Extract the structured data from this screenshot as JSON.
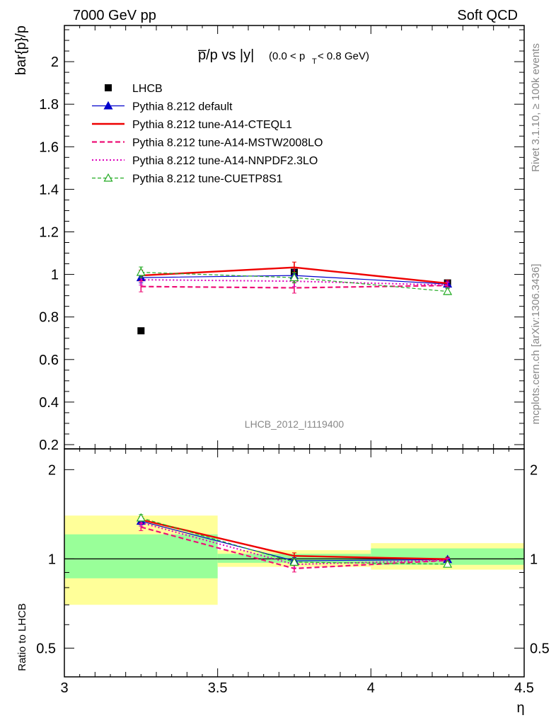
{
  "header": {
    "left": "7000 GeV pp",
    "right": "Soft QCD"
  },
  "side_labels": {
    "rivet": "Rivet 3.1.10, ≥ 100k events",
    "mcplots": "mcplots.cern.ch [arXiv:1306.3436]"
  },
  "watermark": "LHCB_2012_I1119400",
  "chart_data": [
    {
      "type": "line",
      "title": "p̅/p vs |y|",
      "title_sub": "(0.0 < p",
      "title_sub_idx": "T",
      "title_sub_end": " < 0.8 GeV)",
      "ylabel": "bar{p}/p",
      "xlim": [
        3,
        4.5
      ],
      "ylim": [
        0.18,
        2.17
      ],
      "yticks": [
        0.2,
        0.4,
        0.6,
        0.8,
        1,
        1.2,
        1.4,
        1.6,
        1.8,
        2
      ],
      "ytick_labels": [
        "0.2",
        "0.4",
        "0.6",
        "0.8",
        "1",
        "1.2",
        "1.4",
        "1.6",
        "1.8",
        "2"
      ],
      "legend_position": "top-left",
      "data": {
        "name": "LHCB",
        "x": [
          3.25,
          3.75,
          4.25
        ],
        "y": [
          0.735,
          1.01,
          0.96
        ],
        "err": [
          0.005,
          0.01,
          0.01
        ]
      },
      "series": [
        {
          "name": "Pythia 8.212 default",
          "color": "#0000cc",
          "dash": "",
          "marker": "triangle-filled",
          "width": 1.2,
          "x": [
            3.25,
            3.75,
            4.25
          ],
          "y": [
            0.985,
            0.995,
            0.955
          ],
          "err": [
            0.025,
            0.025,
            0.015
          ]
        },
        {
          "name": "Pythia 8.212 tune-A14-CTEQL1",
          "color": "#ee0000",
          "dash": "",
          "marker": "none",
          "width": 2.4,
          "x": [
            3.25,
            3.75,
            4.25
          ],
          "y": [
            0.995,
            1.033,
            0.958
          ],
          "err": [
            0.025,
            0.025,
            0.015
          ]
        },
        {
          "name": "Pythia 8.212 tune-A14-MSTW2008LO",
          "color": "#ee1177",
          "dash": "7,4",
          "marker": "none",
          "width": 2.2,
          "x": [
            3.25,
            3.75,
            4.25
          ],
          "y": [
            0.943,
            0.937,
            0.948
          ],
          "err": [
            0.025,
            0.025,
            0.015
          ]
        },
        {
          "name": "Pythia 8.212 tune-A14-NNPDF2.3LO",
          "color": "#dd00bb",
          "dash": "2,3",
          "marker": "none",
          "width": 2.0,
          "x": [
            3.25,
            3.75,
            4.25
          ],
          "y": [
            0.975,
            0.968,
            0.95
          ],
          "err": [
            0.025,
            0.025,
            0.015
          ]
        },
        {
          "name": "Pythia 8.212 tune-CUETP8S1",
          "color": "#22aa22",
          "dash": "5,3",
          "marker": "triangle-open",
          "width": 1.2,
          "x": [
            3.25,
            3.75,
            4.25
          ],
          "y": [
            1.01,
            0.985,
            0.92
          ],
          "err": [
            0.025,
            0.025,
            0.015
          ]
        }
      ]
    },
    {
      "type": "line",
      "ylabel": "Ratio to LHCB",
      "xlabel": "η",
      "xlim": [
        3,
        4.5
      ],
      "ylim": [
        0.4,
        2.35
      ],
      "yscale": "log",
      "xticks": [
        3,
        3.5,
        4,
        4.5
      ],
      "xtick_labels": [
        "3",
        "3.5",
        "4",
        "4.5"
      ],
      "yticks": [
        0.5,
        1,
        2
      ],
      "ytick_labels": [
        "0.5",
        "1",
        "2"
      ],
      "bands": [
        {
          "x0": 3.0,
          "x1": 3.5,
          "yellow": [
            0.7,
            1.4
          ],
          "green": [
            0.86,
            1.21
          ]
        },
        {
          "x0": 3.5,
          "x1": 4.0,
          "yellow": [
            0.94,
            1.07
          ],
          "green": [
            0.97,
            1.04
          ]
        },
        {
          "x0": 4.0,
          "x1": 4.5,
          "yellow": [
            0.92,
            1.13
          ],
          "green": [
            0.955,
            1.085
          ]
        }
      ],
      "series": [
        {
          "name": "Pythia 8.212 default",
          "color": "#0000cc",
          "dash": "",
          "marker": "triangle-filled",
          "width": 1.2,
          "x": [
            3.25,
            3.75,
            4.25
          ],
          "y": [
            1.34,
            0.985,
            0.995
          ],
          "err": [
            0.035,
            0.025,
            0.015
          ]
        },
        {
          "name": "Pythia 8.212 tune-A14-CTEQL1",
          "color": "#ee0000",
          "dash": "",
          "marker": "none",
          "width": 2.4,
          "x": [
            3.25,
            3.75,
            4.25
          ],
          "y": [
            1.355,
            1.023,
            0.998
          ],
          "err": [
            0.035,
            0.025,
            0.015
          ]
        },
        {
          "name": "Pythia 8.212 tune-A14-MSTW2008LO",
          "color": "#ee1177",
          "dash": "7,4",
          "marker": "none",
          "width": 2.2,
          "x": [
            3.25,
            3.75,
            4.25
          ],
          "y": [
            1.28,
            0.928,
            0.988
          ],
          "err": [
            0.035,
            0.025,
            0.015
          ]
        },
        {
          "name": "Pythia 8.212 tune-A14-NNPDF2.3LO",
          "color": "#dd00bb",
          "dash": "2,3",
          "marker": "none",
          "width": 2.0,
          "x": [
            3.25,
            3.75,
            4.25
          ],
          "y": [
            1.325,
            0.958,
            0.99
          ],
          "err": [
            0.035,
            0.025,
            0.015
          ]
        },
        {
          "name": "Pythia 8.212 tune-CUETP8S1",
          "color": "#22aa22",
          "dash": "5,3",
          "marker": "triangle-open",
          "width": 1.2,
          "x": [
            3.25,
            3.75,
            4.25
          ],
          "y": [
            1.375,
            0.975,
            0.96
          ],
          "err": [
            0.035,
            0.025,
            0.015
          ]
        }
      ]
    }
  ]
}
